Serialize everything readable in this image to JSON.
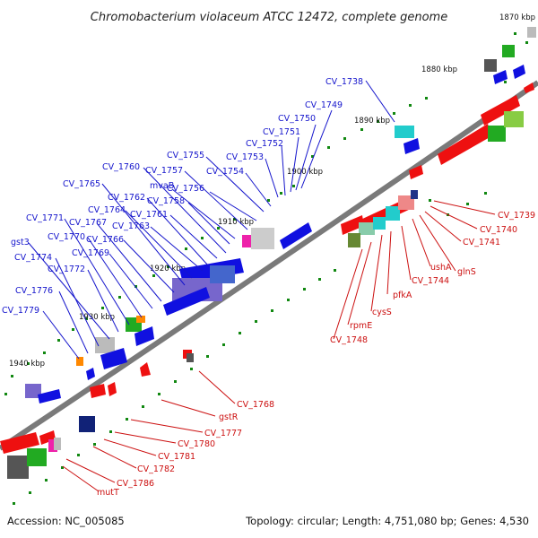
{
  "title": "Chromobacterium violaceum ATCC 12472, complete genome",
  "footer": {
    "accession": "Accession: NC_005085",
    "topology": "Topology: circular; Length: 4,751,080 bp; Genes: 4,530"
  },
  "ticks": [
    "1870 kbp",
    "1880 kbp",
    "1890 kbp",
    "1900 kbp",
    "1910 kbp",
    "1920 kbp",
    "1930 kbp",
    "1940 kbp"
  ],
  "labels_top": [
    "CV_1738",
    "CV_1749",
    "CV_1750",
    "CV_1751",
    "CV_1752",
    "CV_1753",
    "CV_1754",
    "CV_1755",
    "CV_1756",
    "CV_1757",
    "mvaB",
    "CV_1758",
    "CV_1760",
    "CV_1761",
    "CV_1762",
    "CV_1763",
    "CV_1764",
    "CV_1765",
    "CV_1766",
    "CV_1767",
    "CV_1769",
    "CV_1770",
    "CV_1771",
    "CV_1772",
    "gst3",
    "CV_1774",
    "CV_1776",
    "CV_1779"
  ],
  "labels_bottom": [
    "CV_1739",
    "CV_1740",
    "CV_1741",
    "glnS",
    "ushA",
    "CV_1744",
    "pfkA",
    "cysS",
    "rpmE",
    "CV_1748",
    "CV_1768",
    "gstR",
    "CV_1777",
    "CV_1780",
    "CV_1781",
    "CV_1782",
    "CV_1786",
    "mutT"
  ],
  "colors": {
    "forward": "#1010e0",
    "reverse": "#ee1010",
    "backbone": "#888888",
    "tick": "#118811"
  }
}
